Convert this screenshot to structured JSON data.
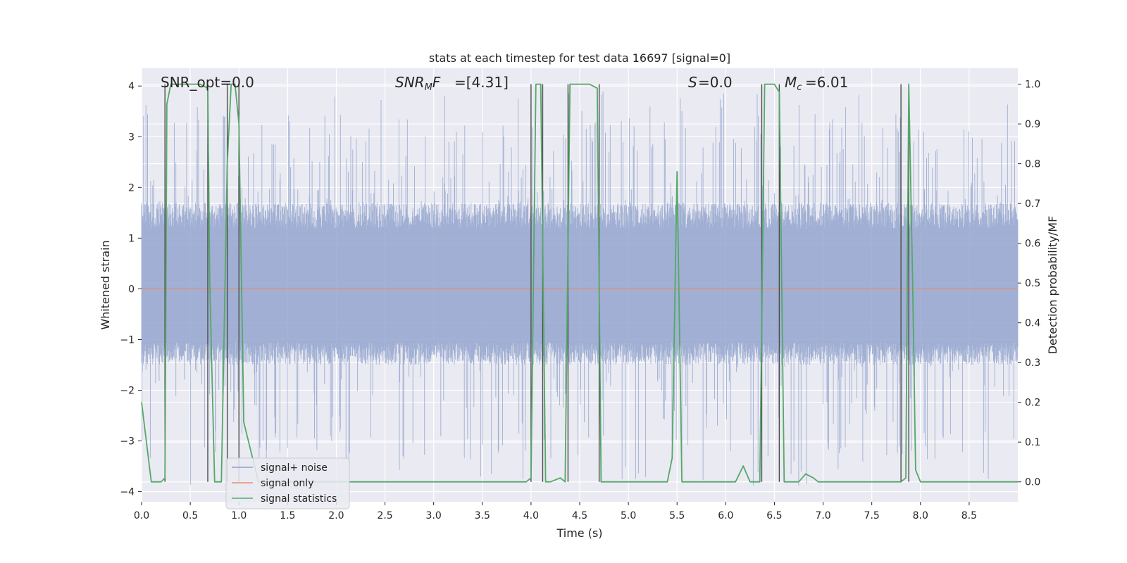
{
  "chart_data": {
    "type": "line",
    "title": "stats at each timestep for test data 16697 [signal=0]",
    "xlabel": "Time (s)",
    "ylabel_left": "Whitened strain",
    "ylabel_right": "Detection probability/MF",
    "xlim": [
      0,
      9.0
    ],
    "ylim_left": [
      -4.2,
      4.35
    ],
    "ylim_right": [
      -0.05,
      1.04
    ],
    "x_ticks": [
      "0.0",
      "0.5",
      "1.0",
      "1.5",
      "2.0",
      "2.5",
      "3.0",
      "3.5",
      "4.0",
      "4.5",
      "5.0",
      "5.5",
      "6.0",
      "6.5",
      "7.0",
      "7.5",
      "8.0",
      "8.5"
    ],
    "y_ticks_left": [
      "−4",
      "−3",
      "−2",
      "−1",
      "0",
      "1",
      "2",
      "3",
      "4"
    ],
    "y_ticks_right": [
      "0.0",
      "0.1",
      "0.2",
      "0.3",
      "0.4",
      "0.5",
      "0.6",
      "0.7",
      "0.8",
      "0.9",
      "1.0"
    ],
    "grid": true,
    "legend_position": "lower-left",
    "annotations": {
      "snr_opt": "SNR_opt=0.0",
      "snr_mf": "=[4.31]",
      "s": "=0.0",
      "mc": "=6.01"
    },
    "series": [
      {
        "name": "signal+ noise",
        "axis": "left",
        "color": "#8da0cb",
        "envelope": {
          "typical_min": -1.5,
          "typical_max": 1.7,
          "extreme_min": -3.9,
          "extreme_max": 3.9
        }
      },
      {
        "name": "signal only",
        "axis": "left",
        "color": "#e98d6b",
        "constant_value": 0.0
      },
      {
        "name": "signal statistics",
        "axis": "right",
        "color": "#55a868",
        "x": [
          0.0,
          0.05,
          0.1,
          0.2,
          0.24,
          0.26,
          0.3,
          0.6,
          0.68,
          0.7,
          0.75,
          0.82,
          0.88,
          0.92,
          0.96,
          1.0,
          1.05,
          1.2,
          2.0,
          3.0,
          3.5,
          3.95,
          4.0,
          4.05,
          4.1,
          4.15,
          4.2,
          4.3,
          4.35,
          4.4,
          4.45,
          4.6,
          4.68,
          4.72,
          5.0,
          5.4,
          5.45,
          5.5,
          5.55,
          5.6,
          5.8,
          6.1,
          6.18,
          6.25,
          6.3,
          6.35,
          6.4,
          6.45,
          6.5,
          6.55,
          6.6,
          6.65,
          6.75,
          6.82,
          6.9,
          6.95,
          7.2,
          7.5,
          7.8,
          7.85,
          7.88,
          7.92,
          7.95,
          8.0,
          8.5,
          9.0
        ],
        "y": [
          0.2,
          0.1,
          0.0,
          0.0,
          0.01,
          0.95,
          1.0,
          1.0,
          0.99,
          0.5,
          0.0,
          0.0,
          0.8,
          1.0,
          1.0,
          0.9,
          0.15,
          0.0,
          0.0,
          0.0,
          0.0,
          0.0,
          0.01,
          1.0,
          1.0,
          0.0,
          0.0,
          0.01,
          0.0,
          1.0,
          1.0,
          1.0,
          0.99,
          0.0,
          0.0,
          0.0,
          0.06,
          0.78,
          0.0,
          0.0,
          0.0,
          0.0,
          0.04,
          0.0,
          0.0,
          0.0,
          1.0,
          1.0,
          1.0,
          0.98,
          0.0,
          0.0,
          0.0,
          0.02,
          0.01,
          0.0,
          0.0,
          0.0,
          0.0,
          0.01,
          1.0,
          0.5,
          0.03,
          0.0,
          0.0,
          0.0
        ]
      }
    ],
    "vertical_markers_x": [
      0.24,
      0.68,
      0.88,
      1.0,
      4.0,
      4.12,
      4.38,
      4.7,
      6.37,
      6.55,
      7.8,
      7.88
    ]
  }
}
